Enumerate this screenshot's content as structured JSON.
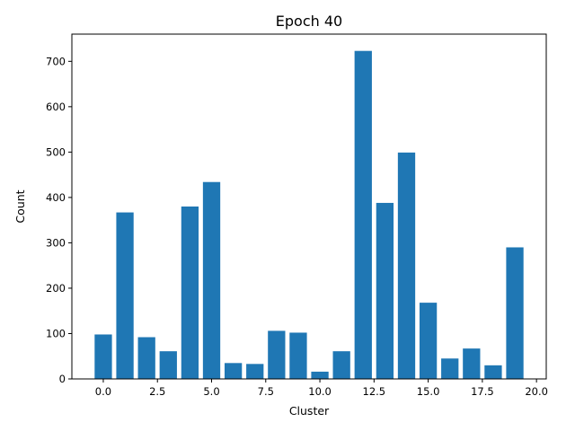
{
  "chart_data": {
    "type": "bar",
    "title": "Epoch 40",
    "xlabel": "Cluster",
    "ylabel": "Count",
    "x": [
      0,
      1,
      2,
      3,
      4,
      5,
      6,
      7,
      8,
      9,
      10,
      11,
      12,
      13,
      14,
      15,
      16,
      17,
      18,
      19
    ],
    "values": [
      98,
      367,
      92,
      61,
      380,
      434,
      35,
      33,
      106,
      102,
      16,
      61,
      723,
      388,
      499,
      168,
      45,
      67,
      30,
      290
    ],
    "xlim": [
      -1.45,
      20.45
    ],
    "ylim": [
      0,
      760
    ],
    "xticks": [
      0.0,
      2.5,
      5.0,
      7.5,
      10.0,
      12.5,
      15.0,
      17.5,
      20.0
    ],
    "xtick_labels": [
      "0.0",
      "2.5",
      "5.0",
      "7.5",
      "10.0",
      "12.5",
      "15.0",
      "17.5",
      "20.0"
    ],
    "yticks": [
      0,
      100,
      200,
      300,
      400,
      500,
      600,
      700
    ],
    "ytick_labels": [
      "0",
      "100",
      "200",
      "300",
      "400",
      "500",
      "600",
      "700"
    ],
    "bar_color": "#1f77b4",
    "grid": false
  }
}
